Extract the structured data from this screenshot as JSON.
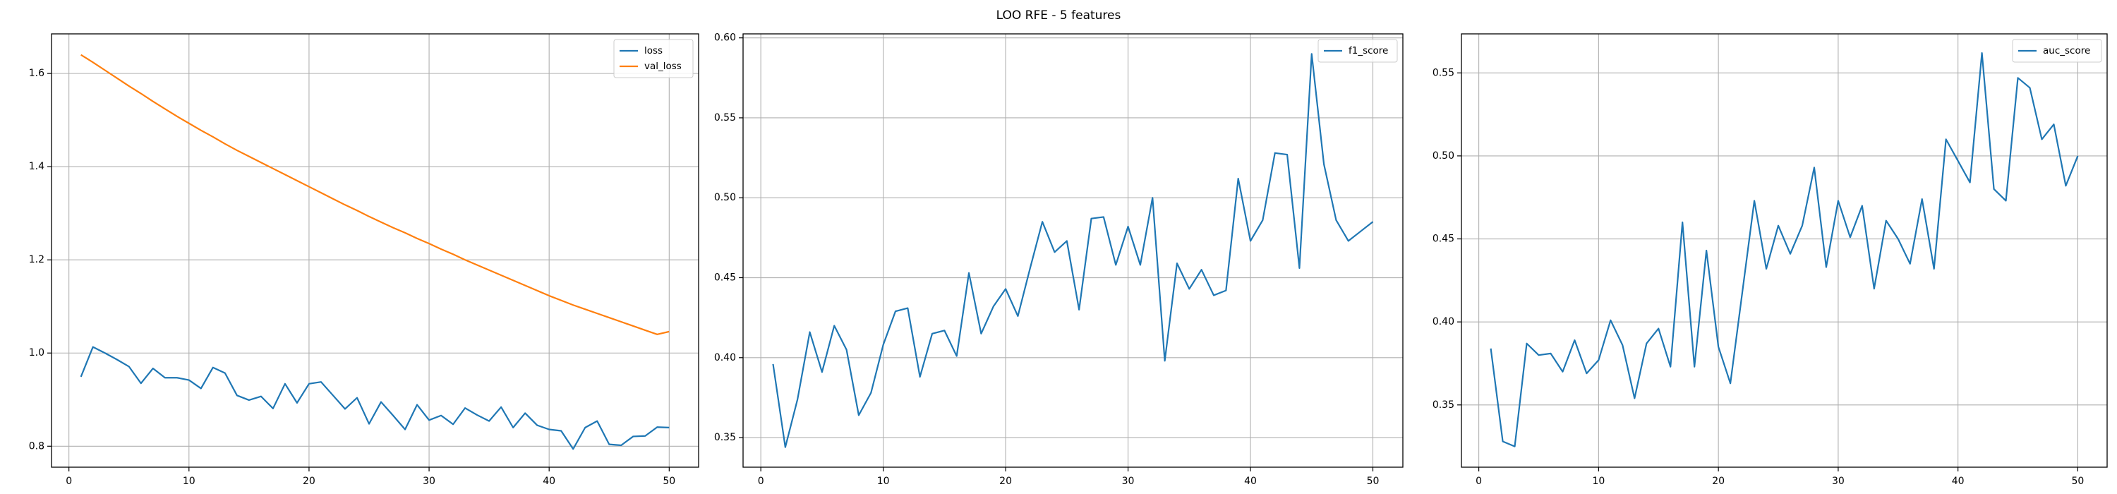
{
  "figure": {
    "title": "LOO RFE - 5 features"
  },
  "colors": {
    "blue": "#1f77b4",
    "orange": "#ff7f0e",
    "grid": "#b0b0b0",
    "axis": "#000000"
  },
  "chart_data": [
    {
      "type": "line",
      "grid": true,
      "legend_position": "top-right",
      "xlim": [
        -1.45,
        52.45
      ],
      "ylim": [
        0.755,
        1.685
      ],
      "xticks": [
        0,
        10,
        20,
        30,
        40,
        50
      ],
      "yticks": [
        0.8,
        1.0,
        1.2,
        1.4,
        1.6
      ],
      "ytick_labels": [
        "0.8",
        "1.0",
        "1.2",
        "1.4",
        "1.6"
      ],
      "x": [
        1,
        2,
        3,
        4,
        5,
        6,
        7,
        8,
        9,
        10,
        11,
        12,
        13,
        14,
        15,
        16,
        17,
        18,
        19,
        20,
        21,
        22,
        23,
        24,
        25,
        26,
        27,
        28,
        29,
        30,
        31,
        32,
        33,
        34,
        35,
        36,
        37,
        38,
        39,
        40,
        41,
        42,
        43,
        44,
        45,
        46,
        47,
        48,
        49,
        50
      ],
      "series": [
        {
          "name": "loss",
          "color": "#1f77b4",
          "values": [
            0.949,
            1.013,
            1.0,
            0.986,
            0.971,
            0.935,
            0.967,
            0.947,
            0.947,
            0.942,
            0.924,
            0.969,
            0.957,
            0.909,
            0.899,
            0.907,
            0.881,
            0.934,
            0.893,
            0.934,
            0.938,
            0.909,
            0.88,
            0.904,
            0.848,
            0.895,
            0.866,
            0.836,
            0.889,
            0.856,
            0.866,
            0.847,
            0.882,
            0.867,
            0.854,
            0.884,
            0.84,
            0.871,
            0.845,
            0.836,
            0.833,
            0.794,
            0.84,
            0.854,
            0.804,
            0.802,
            0.821,
            0.822,
            0.841,
            0.84
          ]
        },
        {
          "name": "val_loss",
          "color": "#ff7f0e",
          "values": [
            1.64,
            1.624,
            1.607,
            1.59,
            1.573,
            1.557,
            1.54,
            1.524,
            1.508,
            1.493,
            1.478,
            1.464,
            1.449,
            1.435,
            1.422,
            1.409,
            1.396,
            1.383,
            1.37,
            1.357,
            1.344,
            1.331,
            1.318,
            1.306,
            1.293,
            1.281,
            1.269,
            1.258,
            1.246,
            1.235,
            1.223,
            1.212,
            1.2,
            1.189,
            1.178,
            1.167,
            1.156,
            1.145,
            1.134,
            1.123,
            1.113,
            1.103,
            1.094,
            1.085,
            1.076,
            1.067,
            1.058,
            1.049,
            1.04,
            1.046
          ]
        }
      ]
    },
    {
      "type": "line",
      "grid": true,
      "legend_position": "top-right",
      "xlim": [
        -1.45,
        52.45
      ],
      "ylim": [
        0.3315,
        0.6025
      ],
      "xticks": [
        0,
        10,
        20,
        30,
        40,
        50
      ],
      "yticks": [
        0.35,
        0.4,
        0.45,
        0.5,
        0.55,
        0.6
      ],
      "ytick_labels": [
        "0.35",
        "0.40",
        "0.45",
        "0.50",
        "0.55",
        "0.60"
      ],
      "x": [
        1,
        2,
        3,
        4,
        5,
        6,
        7,
        8,
        9,
        10,
        11,
        12,
        13,
        14,
        15,
        16,
        17,
        18,
        19,
        20,
        21,
        22,
        23,
        24,
        25,
        26,
        27,
        28,
        29,
        30,
        31,
        32,
        33,
        34,
        35,
        36,
        37,
        38,
        39,
        40,
        41,
        42,
        43,
        44,
        45,
        46,
        47,
        48,
        49,
        50
      ],
      "series": [
        {
          "name": "f1_score",
          "color": "#1f77b4",
          "values": [
            0.396,
            0.344,
            0.374,
            0.416,
            0.391,
            0.42,
            0.405,
            0.364,
            0.378,
            0.408,
            0.429,
            0.431,
            0.388,
            0.415,
            0.417,
            0.401,
            0.453,
            0.415,
            0.432,
            0.443,
            0.426,
            0.456,
            0.485,
            0.466,
            0.473,
            0.43,
            0.487,
            0.488,
            0.458,
            0.482,
            0.458,
            0.5,
            0.398,
            0.459,
            0.443,
            0.455,
            0.439,
            0.442,
            0.512,
            0.473,
            0.486,
            0.528,
            0.527,
            0.456,
            0.59,
            0.521,
            0.486,
            0.473,
            0.479,
            0.485
          ]
        }
      ]
    },
    {
      "type": "line",
      "grid": true,
      "legend_position": "top-right",
      "xlim": [
        -1.45,
        52.45
      ],
      "ylim": [
        0.3125,
        0.5735
      ],
      "xticks": [
        0,
        10,
        20,
        30,
        40,
        50
      ],
      "yticks": [
        0.35,
        0.4,
        0.45,
        0.5,
        0.55
      ],
      "ytick_labels": [
        "0.35",
        "0.40",
        "0.45",
        "0.50",
        "0.55"
      ],
      "x": [
        1,
        2,
        3,
        4,
        5,
        6,
        7,
        8,
        9,
        10,
        11,
        12,
        13,
        14,
        15,
        16,
        17,
        18,
        19,
        20,
        21,
        22,
        23,
        24,
        25,
        26,
        27,
        28,
        29,
        30,
        31,
        32,
        33,
        34,
        35,
        36,
        37,
        38,
        39,
        40,
        41,
        42,
        43,
        44,
        45,
        46,
        47,
        48,
        49,
        50
      ],
      "series": [
        {
          "name": "auc_score",
          "color": "#1f77b4",
          "values": [
            0.384,
            0.328,
            0.325,
            0.387,
            0.38,
            0.381,
            0.37,
            0.389,
            0.369,
            0.377,
            0.401,
            0.386,
            0.354,
            0.387,
            0.396,
            0.373,
            0.46,
            0.373,
            0.443,
            0.385,
            0.363,
            0.418,
            0.473,
            0.432,
            0.458,
            0.441,
            0.458,
            0.493,
            0.433,
            0.473,
            0.451,
            0.47,
            0.42,
            0.461,
            0.45,
            0.435,
            0.474,
            0.432,
            0.51,
            0.497,
            0.484,
            0.562,
            0.48,
            0.473,
            0.547,
            0.541,
            0.51,
            0.519,
            0.482,
            0.5
          ]
        }
      ]
    }
  ]
}
